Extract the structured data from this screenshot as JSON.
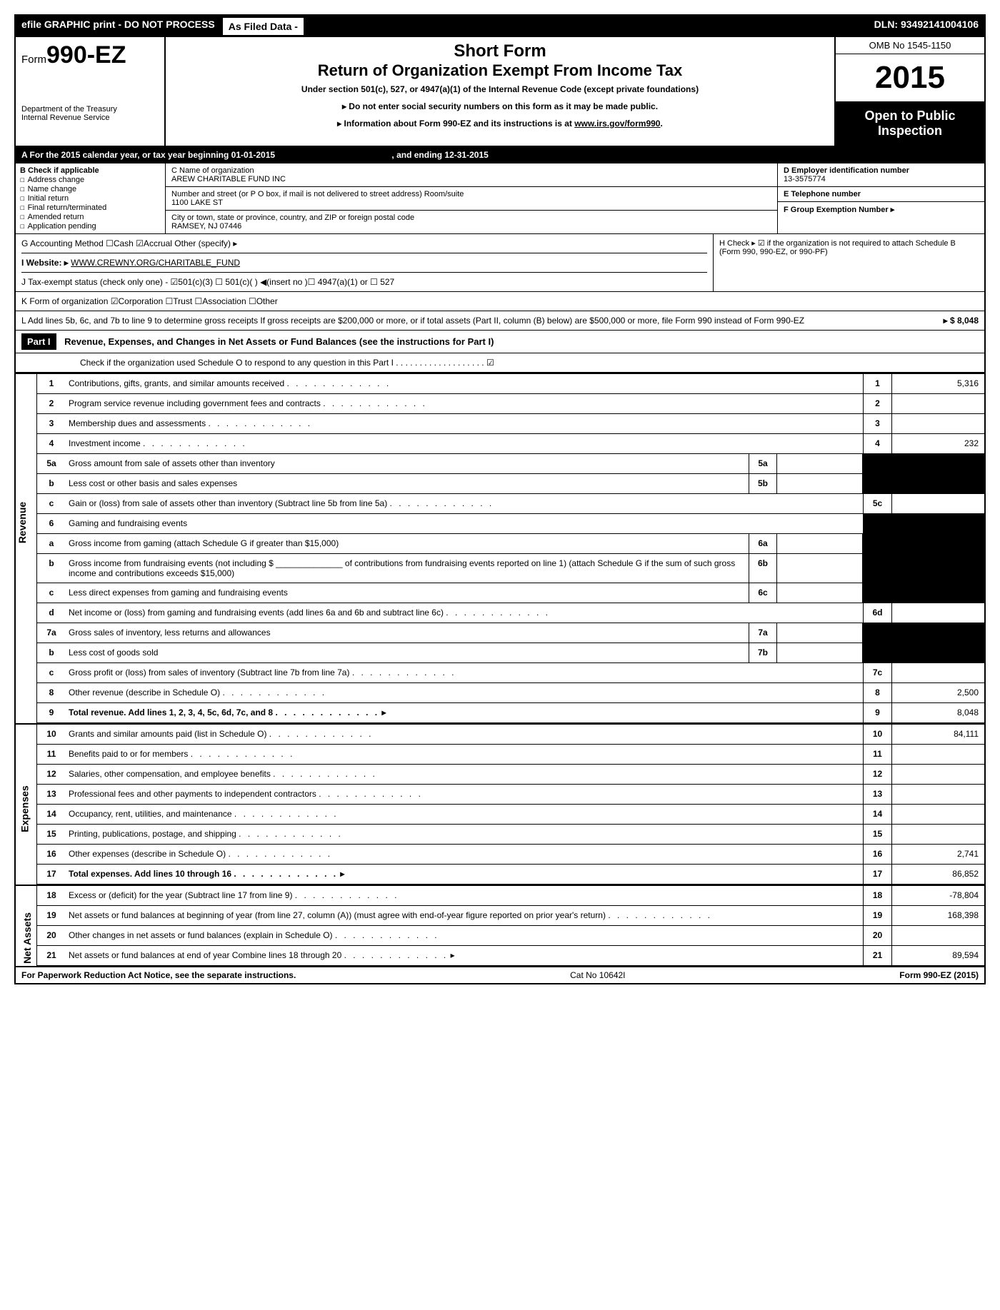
{
  "topbar": {
    "efile": "efile GRAPHIC print - DO NOT PROCESS",
    "asfiled": "As Filed Data -",
    "dln": "DLN: 93492141004106"
  },
  "header": {
    "form_prefix": "Form",
    "form_number": "990-EZ",
    "dept": "Department of the Treasury",
    "irs": "Internal Revenue Service",
    "title1": "Short Form",
    "title2": "Return of Organization Exempt From Income Tax",
    "subtitle": "Under section 501(c), 527, or 4947(a)(1) of the Internal Revenue Code (except private foundations)",
    "note1": "▸ Do not enter social security numbers on this form as it may be made public.",
    "note2": "▸ Information about Form 990-EZ and its instructions is at www.irs.gov/form990.",
    "omb": "OMB No 1545-1150",
    "year": "2015",
    "open": "Open to Public Inspection"
  },
  "rowA": {
    "text_pre": "A  For the 2015 calendar year, or tax year beginning ",
    "begin": "01-01-2015",
    "text_mid": ", and ending ",
    "end": "12-31-2015"
  },
  "colB": {
    "header": "B  Check if applicable",
    "items": [
      "Address change",
      "Name change",
      "Initial return",
      "Final return/terminated",
      "Amended return",
      "Application pending"
    ]
  },
  "colC": {
    "name_label": "C Name of organization",
    "name": "AREW CHARITABLE FUND INC",
    "street_label": "Number and street (or P  O  box, if mail is not delivered to street address) Room/suite",
    "street": "1100 LAKE ST",
    "city_label": "City or town, state or province, country, and ZIP or foreign postal code",
    "city": "RAMSEY, NJ  07446"
  },
  "colDE": {
    "d_label": "D Employer identification number",
    "ein": "13-3575774",
    "e_label": "E Telephone number",
    "f_label": "F Group Exemption Number  ▸"
  },
  "rowG": "G Accounting Method   ☐Cash  ☑Accrual   Other (specify) ▸",
  "rowH": "H   Check ▸ ☑ if the organization is not required to attach Schedule B (Form 990, 990-EZ, or 990-PF)",
  "rowI_label": "I Website: ▸",
  "rowI_url": "WWW.CREWNY.ORG/CHARITABLE_FUND",
  "rowJ": "J Tax-exempt status (check only one) - ☑501(c)(3)  ☐ 501(c)(  ) ◀(insert no )☐ 4947(a)(1) or ☐ 527",
  "rowK": "K Form of organization   ☑Corporation  ☐Trust  ☐Association  ☐Other",
  "rowL": "L Add lines 5b, 6c, and 7b to line 9 to determine gross receipts  If gross receipts are $200,000 or more, or if total assets (Part II, column (B) below) are $500,000 or more, file Form 990 instead of Form 990-EZ",
  "rowL_amount": "▸ $ 8,048",
  "part1": {
    "label": "Part I",
    "title": "Revenue, Expenses, and Changes in Net Assets or Fund Balances (see the instructions for Part I)",
    "check": "Check if the organization used Schedule O to respond to any question in this Part I . . . . . . . . . . . . . . . . . . . ☑"
  },
  "sections": {
    "revenue": "Revenue",
    "expenses": "Expenses",
    "netassets": "Net Assets"
  },
  "lines": {
    "l1": {
      "n": "1",
      "d": "Contributions, gifts, grants, and similar amounts received",
      "rn": "1",
      "rv": "5,316"
    },
    "l2": {
      "n": "2",
      "d": "Program service revenue including government fees and contracts",
      "rn": "2",
      "rv": ""
    },
    "l3": {
      "n": "3",
      "d": "Membership dues and assessments",
      "rn": "3",
      "rv": ""
    },
    "l4": {
      "n": "4",
      "d": "Investment income",
      "rn": "4",
      "rv": "232"
    },
    "l5a": {
      "n": "5a",
      "d": "Gross amount from sale of assets other than inventory",
      "mn": "5a"
    },
    "l5b": {
      "n": "b",
      "d": "Less  cost or other basis and sales expenses",
      "mn": "5b"
    },
    "l5c": {
      "n": "c",
      "d": "Gain or (loss) from sale of assets other than inventory (Subtract line 5b from line 5a)",
      "rn": "5c",
      "rv": ""
    },
    "l6": {
      "n": "6",
      "d": "Gaming and fundraising events"
    },
    "l6a": {
      "n": "a",
      "d": "Gross income from gaming (attach Schedule G if greater than $15,000)",
      "mn": "6a"
    },
    "l6b": {
      "n": "b",
      "d": "Gross income from fundraising events (not including $ ______________ of contributions from fundraising events reported on line 1) (attach Schedule G if the sum of such gross income and contributions exceeds $15,000)",
      "mn": "6b"
    },
    "l6c": {
      "n": "c",
      "d": "Less  direct expenses from gaming and fundraising events",
      "mn": "6c"
    },
    "l6d": {
      "n": "d",
      "d": "Net income or (loss) from gaming and fundraising events (add lines 6a and 6b and subtract line 6c)",
      "rn": "6d",
      "rv": ""
    },
    "l7a": {
      "n": "7a",
      "d": "Gross sales of inventory, less returns and allowances",
      "mn": "7a"
    },
    "l7b": {
      "n": "b",
      "d": "Less  cost of goods sold",
      "mn": "7b"
    },
    "l7c": {
      "n": "c",
      "d": "Gross profit or (loss) from sales of inventory (Subtract line 7b from line 7a)",
      "rn": "7c",
      "rv": ""
    },
    "l8": {
      "n": "8",
      "d": "Other revenue (describe in Schedule O)",
      "rn": "8",
      "rv": "2,500"
    },
    "l9": {
      "n": "9",
      "d": "Total revenue. Add lines 1, 2, 3, 4, 5c, 6d, 7c, and 8",
      "rn": "9",
      "rv": "8,048",
      "bold": true,
      "arrow": true
    },
    "l10": {
      "n": "10",
      "d": "Grants and similar amounts paid (list in Schedule O)",
      "rn": "10",
      "rv": "84,111"
    },
    "l11": {
      "n": "11",
      "d": "Benefits paid to or for members",
      "rn": "11",
      "rv": ""
    },
    "l12": {
      "n": "12",
      "d": "Salaries, other compensation, and employee benefits",
      "rn": "12",
      "rv": ""
    },
    "l13": {
      "n": "13",
      "d": "Professional fees and other payments to independent contractors",
      "rn": "13",
      "rv": ""
    },
    "l14": {
      "n": "14",
      "d": "Occupancy, rent, utilities, and maintenance",
      "rn": "14",
      "rv": ""
    },
    "l15": {
      "n": "15",
      "d": "Printing, publications, postage, and shipping",
      "rn": "15",
      "rv": ""
    },
    "l16": {
      "n": "16",
      "d": "Other expenses (describe in Schedule O)",
      "rn": "16",
      "rv": "2,741"
    },
    "l17": {
      "n": "17",
      "d": "Total expenses. Add lines 10 through 16",
      "rn": "17",
      "rv": "86,852",
      "bold": true,
      "arrow": true
    },
    "l18": {
      "n": "18",
      "d": "Excess or (deficit) for the year (Subtract line 17 from line 9)",
      "rn": "18",
      "rv": "-78,804"
    },
    "l19": {
      "n": "19",
      "d": "Net assets or fund balances at beginning of year (from line 27, column (A)) (must agree with end-of-year figure reported on prior year's return)",
      "rn": "19",
      "rv": "168,398"
    },
    "l20": {
      "n": "20",
      "d": "Other changes in net assets or fund balances (explain in Schedule O)",
      "rn": "20",
      "rv": ""
    },
    "l21": {
      "n": "21",
      "d": "Net assets or fund balances at end of year  Combine lines 18 through 20",
      "rn": "21",
      "rv": "89,594",
      "arrow": true
    }
  },
  "footer": {
    "left": "For Paperwork Reduction Act Notice, see the separate instructions.",
    "center": "Cat No 10642I",
    "right": "Form 990-EZ (2015)"
  }
}
